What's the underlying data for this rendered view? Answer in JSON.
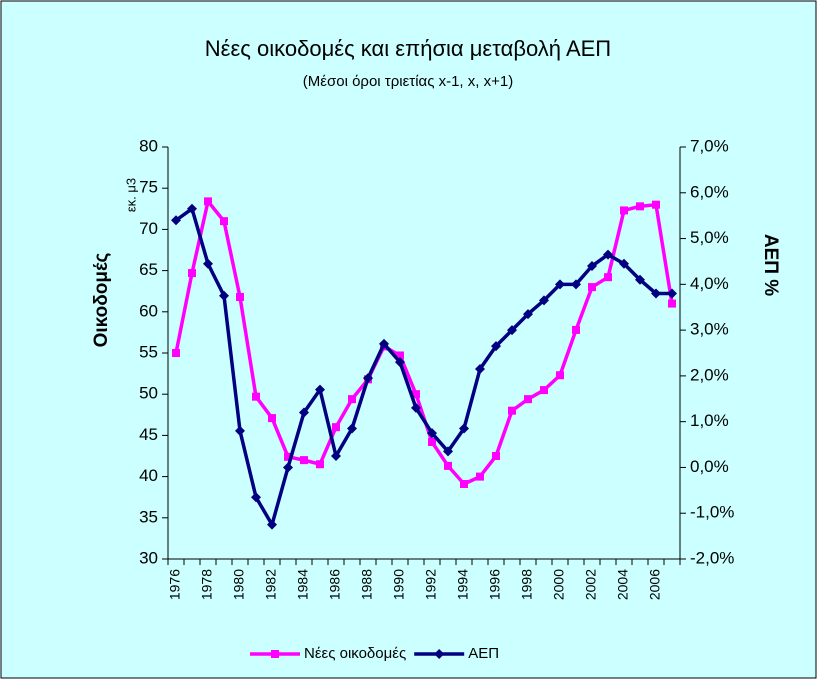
{
  "chart_data": {
    "type": "line",
    "title": "Νέες οικοδομές και επήσια μεταβολή ΑΕΠ",
    "subtitle": "(Μέσοι όροι τριετίας x-1, x, x+1)",
    "y_label": "Οικοδομές",
    "y_unit": "εκ. μ3",
    "y2_label": "ΑΕΠ %",
    "categories": [
      "1976",
      null,
      "1978",
      null,
      "1980",
      null,
      "1982",
      null,
      "1984",
      null,
      "1986",
      null,
      "1988",
      null,
      "1990",
      null,
      "1992",
      null,
      "1994",
      null,
      "1996",
      null,
      "1998",
      null,
      "2000",
      null,
      "2002",
      null,
      "2004",
      null,
      "2006",
      null
    ],
    "series": [
      {
        "name": "Νέες οικοδομές",
        "color": "#ff00ff",
        "marker": "square",
        "values": [
          55,
          64.7,
          73.4,
          71,
          61.8,
          49.7,
          47.1,
          42.4,
          42,
          41.5,
          46,
          49.4,
          51.8,
          55.8,
          54.7,
          50,
          44.2,
          41.3,
          39.1,
          40,
          42.5,
          48,
          49.4,
          50.5,
          52.3,
          57.8,
          63,
          64.2,
          72.3,
          72.8,
          73,
          61
        ]
      },
      {
        "name": "ΑΕΠ",
        "color": "#000080",
        "marker": "diamond",
        "axis": "y2",
        "values": [
          5.4,
          5.65,
          4.45,
          3.75,
          0.8,
          -0.65,
          -1.25,
          0.0,
          1.2,
          1.7,
          0.25,
          0.85,
          1.95,
          2.7,
          2.3,
          1.3,
          0.75,
          0.35,
          0.85,
          2.15,
          2.65,
          3.0,
          3.35,
          3.65,
          4.0,
          4.0,
          4.4,
          4.65,
          4.45,
          4.1,
          3.8,
          3.8
        ]
      }
    ],
    "ylim": [
      30,
      80
    ],
    "yticks": [
      30,
      35,
      40,
      45,
      50,
      55,
      60,
      65,
      70,
      75,
      80
    ],
    "y2lim": [
      -2,
      7
    ],
    "y2ticks": [
      {
        "value": -2,
        "label": "-2,0%"
      },
      {
        "value": -1,
        "label": "-1,0%"
      },
      {
        "value": 0,
        "label": "0,0%"
      },
      {
        "value": 1,
        "label": "1,0%"
      },
      {
        "value": 2,
        "label": "2,0%"
      },
      {
        "value": 3,
        "label": "3,0%"
      },
      {
        "value": 4,
        "label": "4,0%"
      },
      {
        "value": 5,
        "label": "5,0%"
      },
      {
        "value": 6,
        "label": "6,0%"
      },
      {
        "value": 7,
        "label": "7,0%"
      }
    ],
    "legend": "bottom",
    "grid": false
  }
}
